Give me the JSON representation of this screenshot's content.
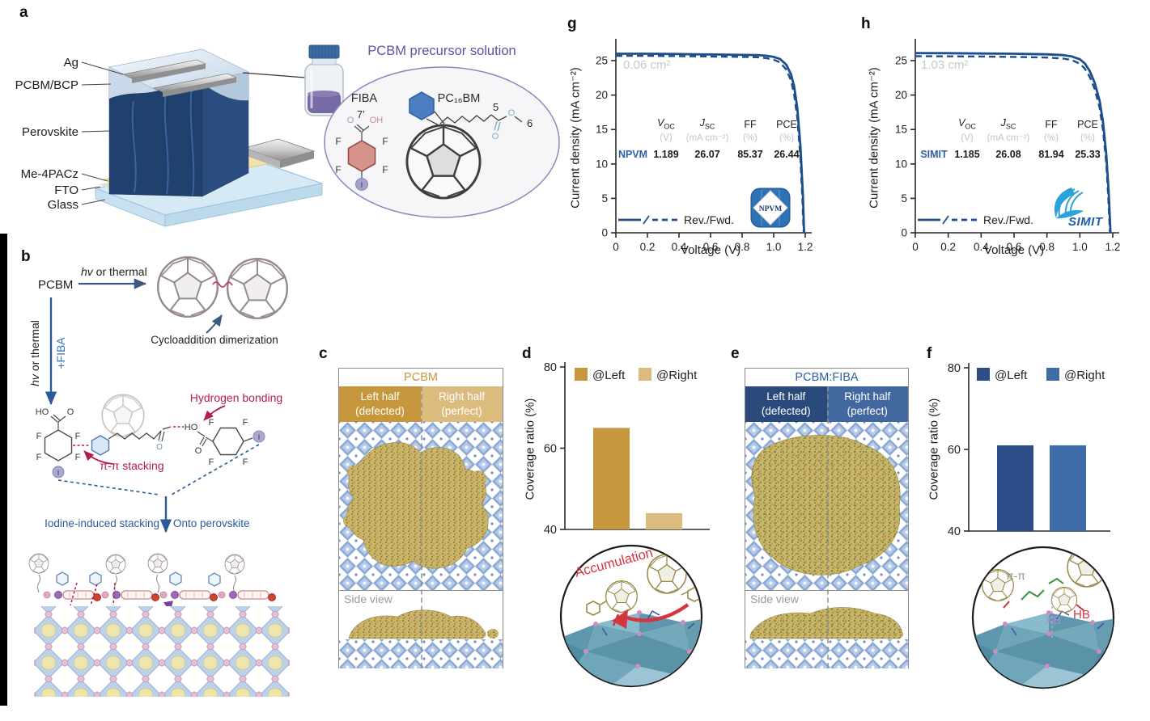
{
  "figure": {
    "background": "#ffffff"
  },
  "colors": {
    "curve_navy": "#1c4e8e",
    "gold_dark": "#c6973d",
    "gold_light": "#dcbc7e",
    "navy_dark": "#2b4c87",
    "blue_mid": "#3e6ca8",
    "crimson": "#b51c4e",
    "red_accent": "#d5353f",
    "grey_units": "#c4c4c4",
    "purple_title": "#5b54a4"
  },
  "panels": {
    "a": {
      "letter": "a",
      "layers": [
        "Ag",
        "PCBM/BCP",
        "Perovskite",
        "Me-4PACz",
        "FTO",
        "Glass"
      ],
      "solution_title": "PCBM precursor solution",
      "fiba": {
        "name": "FIBA",
        "pos": "7’",
        "o": "O",
        "oh": "OH",
        "f": "F",
        "i": "I"
      },
      "pcbm": {
        "name": "PC₁₆BM",
        "n5": "5",
        "n6": "6",
        "o1": "O",
        "o2": "O"
      }
    },
    "b": {
      "letter": "b",
      "pcbm": "PCBM",
      "hv_italic": "hv",
      "or_thermal": " or thermal",
      "plus_fiba": "+FIBA",
      "cycloaddition": "Cycloaddition dimerization",
      "hydrogen_bonding": "Hydrogen bonding",
      "pi_stacking": "π-π stacking",
      "iodine_stacking": "Iodine-induced stacking",
      "onto_perovskite": "Onto perovskite",
      "ho": "HO",
      "o": "O",
      "f": "F",
      "i": "I"
    },
    "c": {
      "letter": "c",
      "title": "PCBM",
      "left_l1": "Left half",
      "left_l2": "(defected)",
      "right_l1": "Right half",
      "right_l2": "(perfect)",
      "side_view": "Side view"
    },
    "d": {
      "letter": "d",
      "annotation": "Accumulation"
    },
    "e": {
      "letter": "e",
      "title": "PCBM:FIBA",
      "left_l1": "Left half",
      "left_l2": "(defected)",
      "right_l1": "Right half",
      "right_l2": "(perfect)",
      "side_view": "Side view"
    },
    "f": {
      "letter": "f",
      "labels": {
        "pipi": "π-π",
        "xb": "XB",
        "hb": "HB"
      }
    },
    "g": {
      "letter": "g",
      "legend": "Rev./Fwd.",
      "logo": "NPVM",
      "table": {
        "v": "V",
        "v_sub": "OC",
        "j": "J",
        "j_sub": "SC",
        "ff": "FF",
        "pce": "PCE",
        "u_v": "(V)",
        "u_j": "(mA cm⁻²)",
        "u_ff": "(%)",
        "u_pce": "(%)",
        "row": "NPVM",
        "voc": "1.189",
        "jsc": "26.07",
        "ffv": "85.37",
        "pcev": "26.44"
      }
    },
    "h": {
      "letter": "h",
      "legend": "Rev./Fwd.",
      "logo": "SIMIT",
      "table": {
        "v": "V",
        "v_sub": "OC",
        "j": "J",
        "j_sub": "SC",
        "ff": "FF",
        "pce": "PCE",
        "u_v": "(V)",
        "u_j": "(mA cm⁻²)",
        "u_ff": "(%)",
        "u_pce": "(%)",
        "row": "SIMIT",
        "voc": "1.185",
        "jsc": "26.08",
        "ffv": "81.94",
        "pcev": "25.33"
      }
    }
  },
  "chart_data": [
    {
      "id": "d",
      "type": "bar",
      "panel": "d",
      "ylabel": "Coverage ratio (%)",
      "ylim": [
        40,
        80
      ],
      "yticks": [
        40,
        60,
        80
      ],
      "categories": [
        "@Left",
        "@Right"
      ],
      "values": [
        65,
        44
      ],
      "colors": [
        "#c6973d",
        "#dcbc7e"
      ],
      "legend_position": "top",
      "grid": false
    },
    {
      "id": "f",
      "type": "bar",
      "panel": "f",
      "ylabel": "Coverage ratio (%)",
      "ylim": [
        40,
        80
      ],
      "yticks": [
        40,
        60,
        80
      ],
      "categories": [
        "@Left",
        "@Right"
      ],
      "values": [
        61,
        61
      ],
      "colors": [
        "#2b4c87",
        "#3e6ca8"
      ],
      "legend_position": "top",
      "grid": false
    },
    {
      "id": "g",
      "type": "line",
      "panel": "g",
      "area_label": "0.06 cm²",
      "xlabel": "Voltage (V)",
      "ylabel": "Current density (mA cm⁻²)",
      "xlim": [
        0,
        1.2
      ],
      "ylim": [
        0,
        27
      ],
      "xticks": [
        "0",
        "0.2",
        "0.4",
        "0.6",
        "0.8",
        "1.0",
        "1.2"
      ],
      "yticks": [
        0,
        5,
        10,
        15,
        20,
        25
      ],
      "color": "#1c4e8e",
      "legend": "Rev./Fwd.",
      "certification_logo": "NPVM",
      "metrics": {
        "device": "NPVM",
        "Voc_V": 1.189,
        "Jsc_mA_cm2": 26.07,
        "FF_pct": 85.37,
        "PCE_pct": 26.44
      },
      "series": [
        {
          "name": "Rev.",
          "style": "solid",
          "x": [
            0,
            0.1,
            0.2,
            0.3,
            0.4,
            0.5,
            0.6,
            0.7,
            0.8,
            0.9,
            0.95,
            1.0,
            1.04,
            1.08,
            1.11,
            1.13,
            1.15,
            1.17,
            1.185,
            1.193
          ],
          "y": [
            26.0,
            26.0,
            26.0,
            25.98,
            25.95,
            25.92,
            25.9,
            25.87,
            25.84,
            25.8,
            25.72,
            25.55,
            25.25,
            24.4,
            23.0,
            21.2,
            18.0,
            12.5,
            5.5,
            0
          ]
        },
        {
          "name": "Fwd.",
          "style": "dashed",
          "x": [
            0,
            0.2,
            0.4,
            0.6,
            0.8,
            0.9,
            0.95,
            1.0,
            1.04,
            1.08,
            1.11,
            1.13,
            1.15,
            1.17,
            1.183,
            1.19
          ],
          "y": [
            25.7,
            25.7,
            25.66,
            25.6,
            25.55,
            25.48,
            25.38,
            25.15,
            24.75,
            23.7,
            22.1,
            20.0,
            16.6,
            10.8,
            4.2,
            0
          ]
        }
      ]
    },
    {
      "id": "h",
      "type": "line",
      "panel": "h",
      "area_label": "1.03 cm²",
      "xlabel": "Voltage (V)",
      "ylabel": "Current density (mA cm⁻²)",
      "xlim": [
        0,
        1.2
      ],
      "ylim": [
        0,
        27
      ],
      "xticks": [
        "0",
        "0.2",
        "0.4",
        "0.6",
        "0.8",
        "1.0",
        "1.2"
      ],
      "yticks": [
        0,
        5,
        10,
        15,
        20,
        25
      ],
      "color": "#1c4e8e",
      "legend": "Rev./Fwd.",
      "certification_logo": "SIMIT",
      "metrics": {
        "device": "SIMIT",
        "Voc_V": 1.185,
        "Jsc_mA_cm2": 26.08,
        "FF_pct": 81.94,
        "PCE_pct": 25.33
      },
      "series": [
        {
          "name": "Rev.",
          "style": "solid",
          "x": [
            0,
            0.2,
            0.4,
            0.6,
            0.8,
            0.9,
            0.95,
            1.0,
            1.03,
            1.06,
            1.09,
            1.12,
            1.14,
            1.16,
            1.175,
            1.186
          ],
          "y": [
            26.1,
            26.08,
            26.04,
            26.0,
            25.92,
            25.8,
            25.62,
            25.2,
            24.6,
            23.5,
            21.8,
            19.2,
            16.2,
            11.5,
            6.0,
            0
          ]
        },
        {
          "name": "Fwd.",
          "style": "dashed",
          "x": [
            0,
            0.2,
            0.4,
            0.6,
            0.8,
            0.9,
            0.95,
            1.0,
            1.03,
            1.06,
            1.09,
            1.12,
            1.14,
            1.16,
            1.172,
            1.183
          ],
          "y": [
            25.65,
            25.63,
            25.6,
            25.55,
            25.45,
            25.3,
            25.1,
            24.55,
            23.85,
            22.65,
            20.9,
            18.2,
            15.0,
            10.2,
            5.5,
            0
          ]
        }
      ]
    }
  ]
}
